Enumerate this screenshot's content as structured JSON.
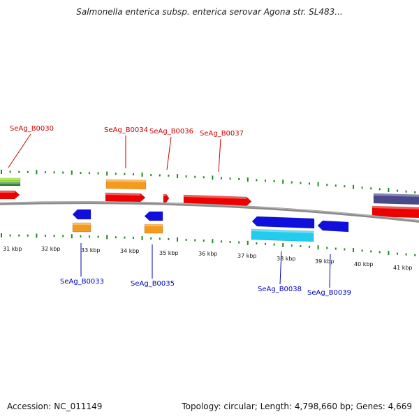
{
  "title": "Salmonella enterica subsp. enterica serovar Agona str. SL483...",
  "accession_label": "Accession: NC_011149",
  "topology_label": "Topology: circular; Length: 4,798,660 bp; Genes: 4,669",
  "colors": {
    "backbone": "#8a8a8a",
    "tick": "#228822",
    "red": "#ee0000",
    "orange": "#f59a1c",
    "blue": "#1010dd",
    "cyan": "#22ccee",
    "green": "#88dd22",
    "purple": "#4a4a8a",
    "label_red": "#cc0000",
    "label_blue": "#0000bb"
  },
  "scale_labels": [
    {
      "kbp": 31,
      "text": "31 kbp"
    },
    {
      "kbp": 32,
      "text": "32 kbp"
    },
    {
      "kbp": 33,
      "text": "33 kbp"
    },
    {
      "kbp": 34,
      "text": "34 kbp"
    },
    {
      "kbp": 35,
      "text": "35 kbp"
    },
    {
      "kbp": 36,
      "text": "36 kbp"
    },
    {
      "kbp": 37,
      "text": "37 kbp"
    },
    {
      "kbp": 38,
      "text": "38 kbp"
    },
    {
      "kbp": 39,
      "text": "39 kbp"
    },
    {
      "kbp": 40,
      "text": "40 kbp"
    },
    {
      "kbp": 41,
      "text": "41 kbp"
    }
  ],
  "gene_labels": [
    {
      "name": "SeAg_B0030",
      "strand": "forward"
    },
    {
      "name": "SeAg_B0034",
      "strand": "forward"
    },
    {
      "name": "SeAg_B0036",
      "strand": "forward"
    },
    {
      "name": "SeAg_B0037",
      "strand": "forward"
    },
    {
      "name": "SeAg_B0033",
      "strand": "reverse"
    },
    {
      "name": "SeAg_B0035",
      "strand": "reverse"
    },
    {
      "name": "SeAg_B0038",
      "strand": "reverse"
    },
    {
      "name": "SeAg_B0039",
      "strand": "reverse"
    }
  ]
}
